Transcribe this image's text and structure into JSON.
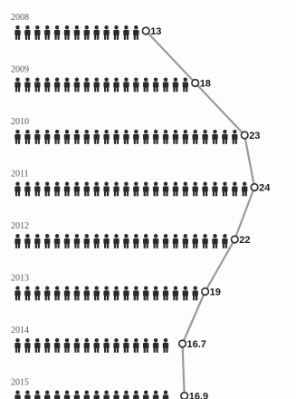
{
  "colors": {
    "figure": "#2b2b2b",
    "trend_line": "#9a9a9a",
    "marker_fill": "#ffffff",
    "marker_stroke": "#2b2b2b",
    "year_text": "#555555",
    "value_text": "#1a1a1a"
  },
  "icon": "person-icon",
  "chart_data": {
    "type": "pictograph",
    "title": "",
    "xlabel": "",
    "ylabel": "",
    "unit_per_icon": 1,
    "trend_line": true,
    "grid": false,
    "legend": "none",
    "x": [
      "2008",
      "2009",
      "2010",
      "2011",
      "2012",
      "2013",
      "2014",
      "2015"
    ],
    "values": [
      13,
      18,
      23,
      24,
      22,
      19,
      16.7,
      16.9
    ],
    "value_labels": [
      "13",
      "18",
      "23",
      "24",
      "22",
      "19",
      "16.7",
      "16.9"
    ]
  }
}
